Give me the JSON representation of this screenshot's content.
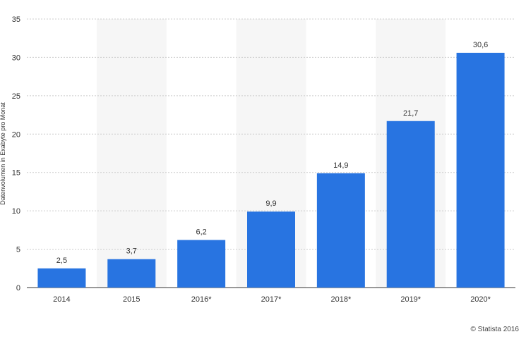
{
  "chart_data": {
    "type": "bar",
    "categories": [
      "2014",
      "2015",
      "2016*",
      "2017*",
      "2018*",
      "2019*",
      "2020*"
    ],
    "values": [
      2.5,
      3.7,
      6.2,
      9.9,
      14.9,
      21.7,
      30.6
    ],
    "value_labels": [
      "2,5",
      "3,7",
      "6,2",
      "9,9",
      "14,9",
      "21,7",
      "30,6"
    ],
    "ylabel": "Datenvolumen in Exabyte pro Monat",
    "ylim": [
      0,
      35
    ],
    "yticks": [
      "0",
      "5",
      "10",
      "15",
      "20",
      "25",
      "30",
      "35"
    ],
    "grid": true,
    "colors": {
      "bar": "#2874e1",
      "band": "#f6f6f6",
      "grid": "#cccccc",
      "axis": "#333333"
    }
  },
  "credit": "© Statista 2016"
}
